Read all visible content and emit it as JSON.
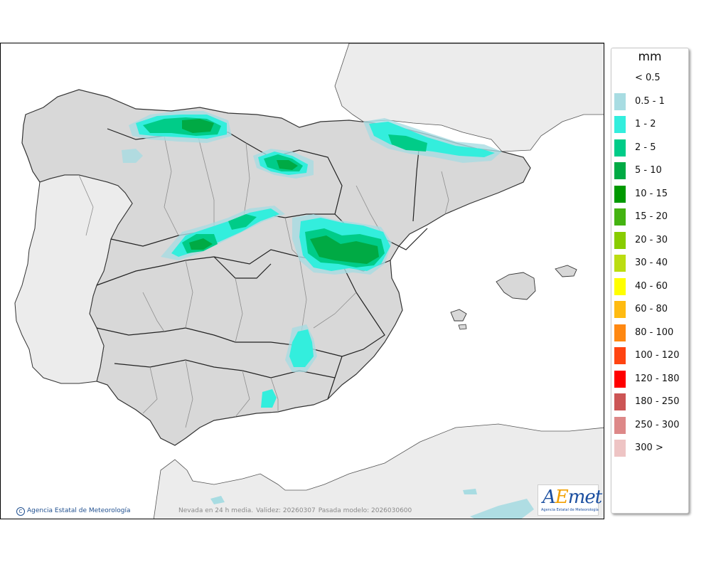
{
  "map": {
    "caption": {
      "variable": "Nevada en 24 h media.",
      "valid": "Validez: 20260307",
      "run": "Pasada modelo: 2026030600"
    },
    "copyright": "Agencia Estatal de Meteorología",
    "logo": {
      "text_a": "A",
      "text_e": "E",
      "text_rest": "met",
      "subtitle": "Agencia Estatal de Meteorología"
    },
    "colors": {
      "sea": "#ffffff",
      "land_outside": "#ececec",
      "peninsula": "#d8d8d8",
      "border": "#222222",
      "province_line": "#8e8e8e"
    }
  },
  "legend": {
    "title": "mm",
    "items": [
      {
        "label": "< 0.5",
        "color": ""
      },
      {
        "label": "0.5 - 1",
        "color": "#a8dce2"
      },
      {
        "label": "1 - 2",
        "color": "#33eedd"
      },
      {
        "label": "2 - 5",
        "color": "#00cc88"
      },
      {
        "label": "5 - 10",
        "color": "#00aa44"
      },
      {
        "label": "10 - 15",
        "color": "#009900"
      },
      {
        "label": "15 - 20",
        "color": "#44b311"
      },
      {
        "label": "20 - 30",
        "color": "#88cc00"
      },
      {
        "label": "30 - 40",
        "color": "#bbdd11"
      },
      {
        "label": "40 - 60",
        "color": "#ffff00"
      },
      {
        "label": "60 - 80",
        "color": "#ffbb11"
      },
      {
        "label": "80 - 100",
        "color": "#ff8811"
      },
      {
        "label": "100 - 120",
        "color": "#ff4411"
      },
      {
        "label": "120 - 180",
        "color": "#ff0000"
      },
      {
        "label": "180 - 250",
        "color": "#cc5555"
      },
      {
        "label": "250 - 300",
        "color": "#dd8888"
      },
      {
        "label": "300 >",
        "color": "#eec4c4"
      }
    ]
  }
}
